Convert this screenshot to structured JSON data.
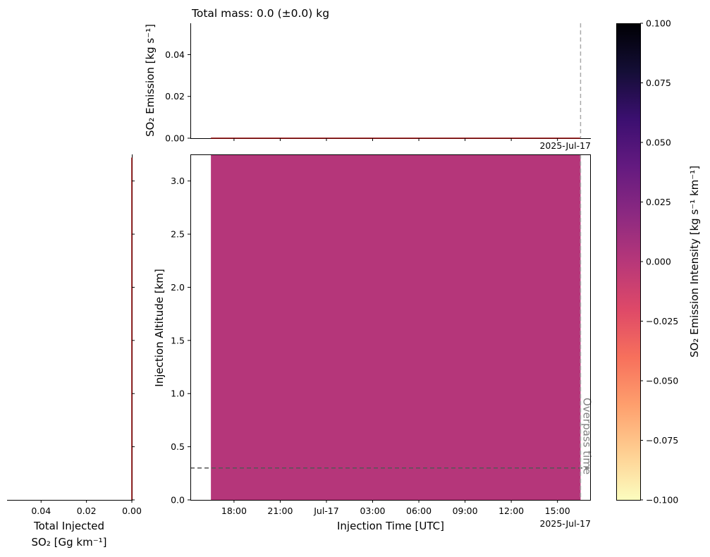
{
  "chart_data": [
    {
      "panel": "top",
      "type": "line",
      "title": "Total mass: 0.0 (±0.0) kg",
      "ylabel": "SO₂ Emission [kg s⁻¹]",
      "yticks": [
        "0.00",
        "0.02",
        "0.04"
      ],
      "ylim": [
        0,
        0.055
      ],
      "x_corner_label": "2025-Jul-17",
      "series": [
        {
          "x": [
            "2025-07-16T16:30",
            "2025-07-17T16:30"
          ],
          "values": [
            0.0,
            0.0
          ],
          "color": "#8b0000"
        }
      ],
      "overpass_line": {
        "x": "2025-07-17T16:30",
        "style": "dashed",
        "color": "#a9a9a9"
      }
    },
    {
      "panel": "main",
      "type": "heatmap",
      "xlabel": "Injection Time [UTC]",
      "ylabel": "Injection Altitude [km]",
      "xticks": [
        "18:00",
        "21:00",
        "Jul-17",
        "03:00",
        "06:00",
        "09:00",
        "12:00",
        "15:00"
      ],
      "x_corner_label": "2025-Jul-17",
      "yticks": [
        "0.0",
        "0.5",
        "1.0",
        "1.5",
        "2.0",
        "2.5",
        "3.0"
      ],
      "ylim": [
        0,
        3.25
      ],
      "xlim": [
        "2025-07-16T15:10",
        "2025-07-17T17:10"
      ],
      "field": {
        "x_start": "2025-07-16T16:30",
        "x_end": "2025-07-17T16:30",
        "altitude_range": [
          0,
          3.25
        ],
        "value": 0.0,
        "color": "#b5367a"
      },
      "overpass_line": {
        "x": "2025-07-17T16:30",
        "style": "dashed",
        "color": "#a9a9a9",
        "label": "Overpass time"
      },
      "reference_altitude": {
        "y": 0.3,
        "style": "dashed",
        "color": "#555555"
      }
    },
    {
      "panel": "left",
      "type": "line",
      "xlabel_line1": "Total Injected",
      "xlabel_line2": "SO₂ [Gg km⁻¹]",
      "xticks": [
        "0.04",
        "0.02",
        "0.00"
      ],
      "xlim": [
        0.055,
        0
      ],
      "series": [
        {
          "altitude": [
            0,
            3.25
          ],
          "values": [
            0.0,
            0.0
          ],
          "color": "#8b0000"
        }
      ]
    },
    {
      "panel": "colorbar",
      "type": "colorbar",
      "label": "SO₂ Emission Intensity [kg s⁻¹ km⁻¹]",
      "range": [
        -0.1,
        0.1
      ],
      "ticks": [
        "0.100",
        "0.075",
        "0.050",
        "0.025",
        "0.000",
        "−0.025",
        "−0.050",
        "−0.075",
        "−0.100"
      ],
      "colormap": "magma_r"
    }
  ]
}
